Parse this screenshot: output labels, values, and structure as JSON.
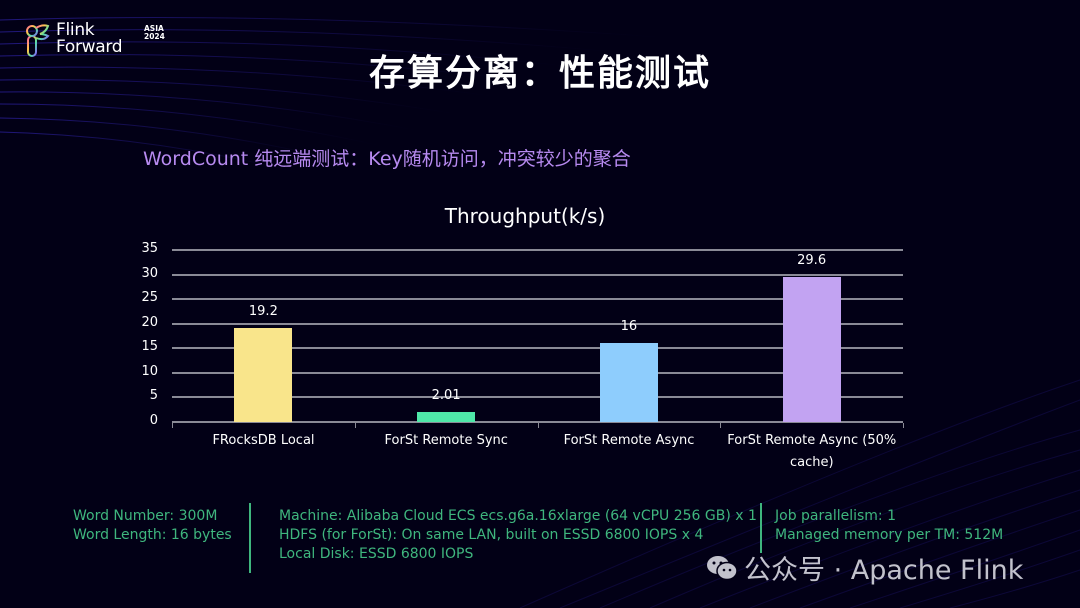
{
  "header": {
    "logo_line1": "Flink",
    "logo_line2": "Forward",
    "logo_tag_line1": "ASIA",
    "logo_tag_line2": "2024",
    "title": "存算分离：性能测试"
  },
  "subtitle": "WordCount 纯远端测试：Key随机访问，冲突较少的聚合",
  "chart_data": {
    "type": "bar",
    "title": "Throughput(k/s)",
    "xlabel": "",
    "ylabel": "",
    "ylim": [
      0,
      35
    ],
    "yticks": [
      0,
      5,
      10,
      15,
      20,
      25,
      30,
      35
    ],
    "grid": true,
    "legend": null,
    "categories": [
      "FRocksDB Local",
      "ForSt Remote Sync",
      "ForSt Remote Async",
      "ForSt Remote Async (50% cache)"
    ],
    "category_lines": [
      [
        "FRocksDB Local"
      ],
      [
        "ForSt Remote Sync"
      ],
      [
        "ForSt Remote Async"
      ],
      [
        "ForSt Remote Async (50%",
        "cache)"
      ]
    ],
    "values": [
      19.2,
      2.01,
      16,
      29.6
    ],
    "value_labels": [
      "19.2",
      "2.01",
      "16",
      "29.6"
    ],
    "colors": [
      "#f9e58b",
      "#4fe8a9",
      "#8ecdfd",
      "#c2a3f2"
    ]
  },
  "footer": {
    "col1": [
      "Word Number: 300M",
      "Word Length: 16 bytes"
    ],
    "col2": [
      "Machine: Alibaba Cloud ECS ecs.g6a.16xlarge (64 vCPU 256 GB) x 1",
      "HDFS (for ForSt): On same LAN, built on ESSD 6800 IOPS x 4",
      "Local Disk: ESSD 6800 IOPS"
    ],
    "col3": [
      "Job parallelism: 1",
      "Managed memory per TM: 512M"
    ]
  },
  "watermark": {
    "icon": "wechat-icon",
    "text": "公众号 · Apache Flink"
  },
  "colors": {
    "background": "#020016",
    "subtitle": "#b78af0",
    "footer_text": "#3fb67e"
  }
}
